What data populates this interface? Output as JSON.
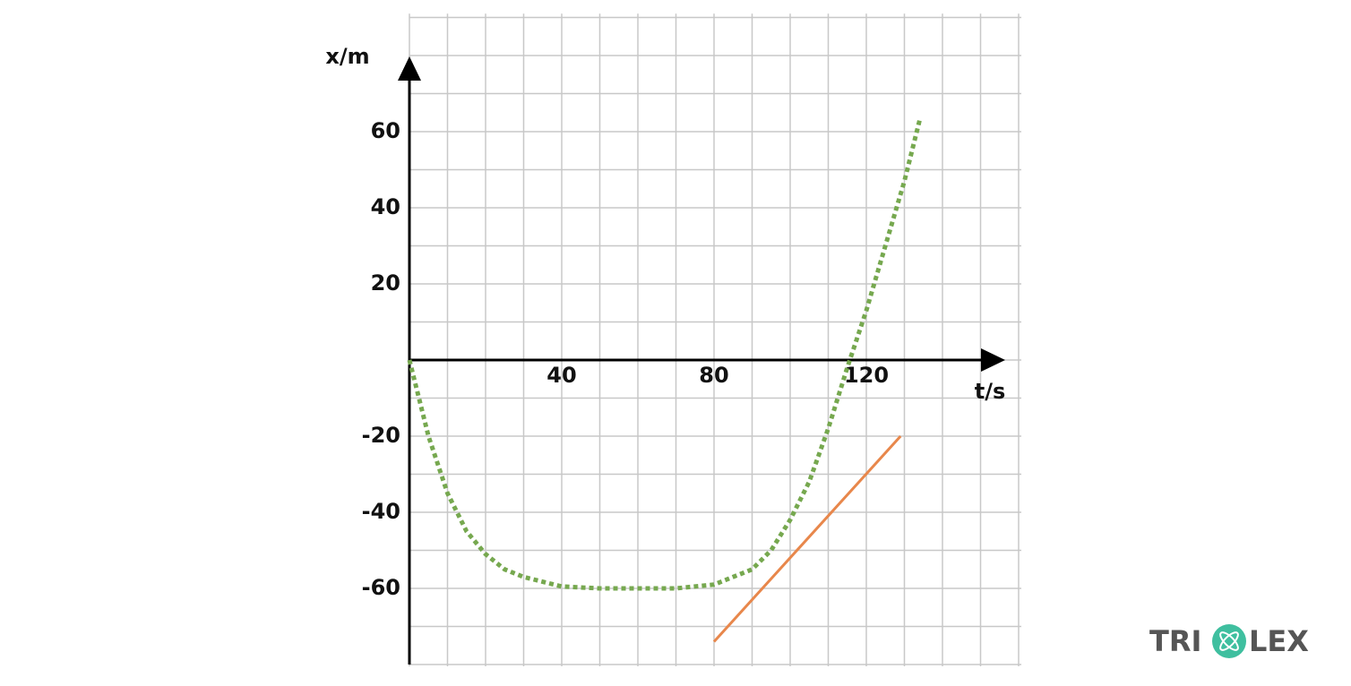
{
  "chart_data": {
    "type": "line",
    "xlabel": "t/s",
    "ylabel": "x/m",
    "xlim": [
      0,
      160
    ],
    "ylim": [
      -80,
      91
    ],
    "xticks": [
      40,
      80,
      120
    ],
    "yticks": [
      -60,
      -40,
      -20,
      20,
      40,
      60
    ],
    "grid": true,
    "xgrid": [
      0,
      10,
      20,
      30,
      40,
      50,
      60,
      70,
      80,
      90,
      100,
      110,
      120,
      130,
      140,
      150,
      160
    ],
    "ygrid": [
      -80,
      -70,
      -60,
      -50,
      -40,
      -30,
      -20,
      -10,
      0,
      10,
      20,
      30,
      40,
      50,
      60,
      70,
      80,
      90
    ],
    "series": [
      {
        "color": "#76a84f",
        "dashed": true,
        "x": [
          0,
          5,
          10,
          15,
          20,
          25,
          30,
          40,
          50,
          60,
          70,
          80,
          90,
          95,
          100,
          105,
          110,
          115,
          120,
          125,
          130,
          134
        ],
        "values": [
          0,
          -20,
          -35,
          -45,
          -51,
          -55,
          -57,
          -59.5,
          -60,
          -60,
          -60,
          -59,
          -55,
          -50,
          -42,
          -32,
          -18,
          -2,
          13,
          30,
          47,
          63
        ]
      },
      {
        "color": "#e8874b",
        "dashed": false,
        "x": [
          80,
          129
        ],
        "values": [
          -74,
          -20
        ]
      }
    ]
  },
  "brand": {
    "left": "TRI",
    "right": "LEX"
  }
}
